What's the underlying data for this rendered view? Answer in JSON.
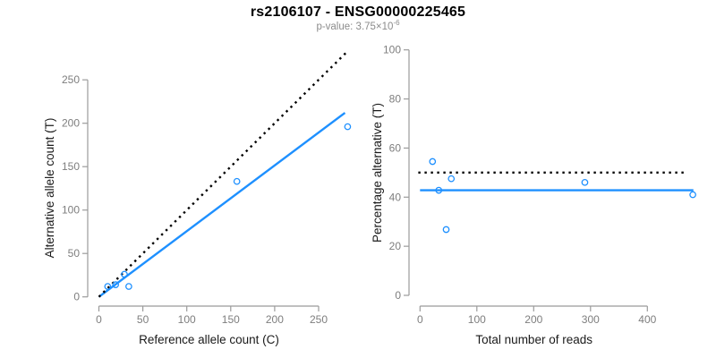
{
  "header": {
    "title": "rs2106107 - ENSG00000225465",
    "subtitle_prefix": "p-value: 3.75×10",
    "subtitle_exponent": "-6"
  },
  "colors": {
    "background": "#ffffff",
    "axis_line": "#9b9b9b",
    "tick_label": "#7e7e7e",
    "axis_title": "#1a1a1a",
    "point_blue": "#1E90FF",
    "identity_black": "#000000"
  },
  "chart_data": [
    {
      "type": "scatter",
      "name": "allele-count-scatter",
      "title": "rs2106107 - ENSG00000225465",
      "subtitle": "p-value: 3.75×10^-6",
      "xlabel": "Reference allele count (C)",
      "ylabel": "Alternative allele count (T)",
      "xticks": [
        0,
        50,
        100,
        150,
        200,
        250
      ],
      "yticks": [
        0,
        50,
        100,
        150,
        200,
        250
      ],
      "xlim": [
        0,
        290
      ],
      "ylim": [
        0,
        290
      ],
      "grid": false,
      "point_style": "open-circle",
      "point_color": "#1E90FF",
      "points": [
        [
          10,
          12
        ],
        [
          19,
          14
        ],
        [
          29,
          26
        ],
        [
          34,
          12
        ],
        [
          157,
          133
        ],
        [
          283,
          196
        ]
      ],
      "lines": [
        {
          "name": "fit-line",
          "style": "solid",
          "color": "#1E90FF",
          "from": [
            0,
            0
          ],
          "to": [
            280,
            212
          ]
        },
        {
          "name": "identity-line",
          "style": "dotted",
          "color": "#000000",
          "from": [
            0,
            0
          ],
          "to": [
            283,
            283
          ]
        }
      ]
    },
    {
      "type": "scatter",
      "name": "percentage-alternative-scatter",
      "xlabel": "Total number of reads",
      "ylabel": "Percentage alternative (T)",
      "xticks": [
        0,
        100,
        200,
        300,
        400
      ],
      "yticks": [
        0,
        20,
        40,
        60,
        80,
        100
      ],
      "xlim": [
        0,
        485
      ],
      "ylim": [
        0,
        100
      ],
      "grid": false,
      "point_style": "open-circle",
      "point_color": "#1E90FF",
      "points": [
        [
          22,
          54.5
        ],
        [
          33,
          42.8
        ],
        [
          55,
          47.5
        ],
        [
          46,
          26.8
        ],
        [
          290,
          46
        ],
        [
          480,
          41
        ]
      ],
      "lines": [
        {
          "name": "mean-percentage-line",
          "style": "solid",
          "color": "#1E90FF",
          "from": [
            0,
            42.8
          ],
          "to": [
            481,
            42.8
          ]
        },
        {
          "name": "fifty-percent-line",
          "style": "dotted",
          "color": "#000000",
          "from": [
            -3,
            50
          ],
          "to": [
            470,
            50
          ]
        }
      ]
    }
  ]
}
